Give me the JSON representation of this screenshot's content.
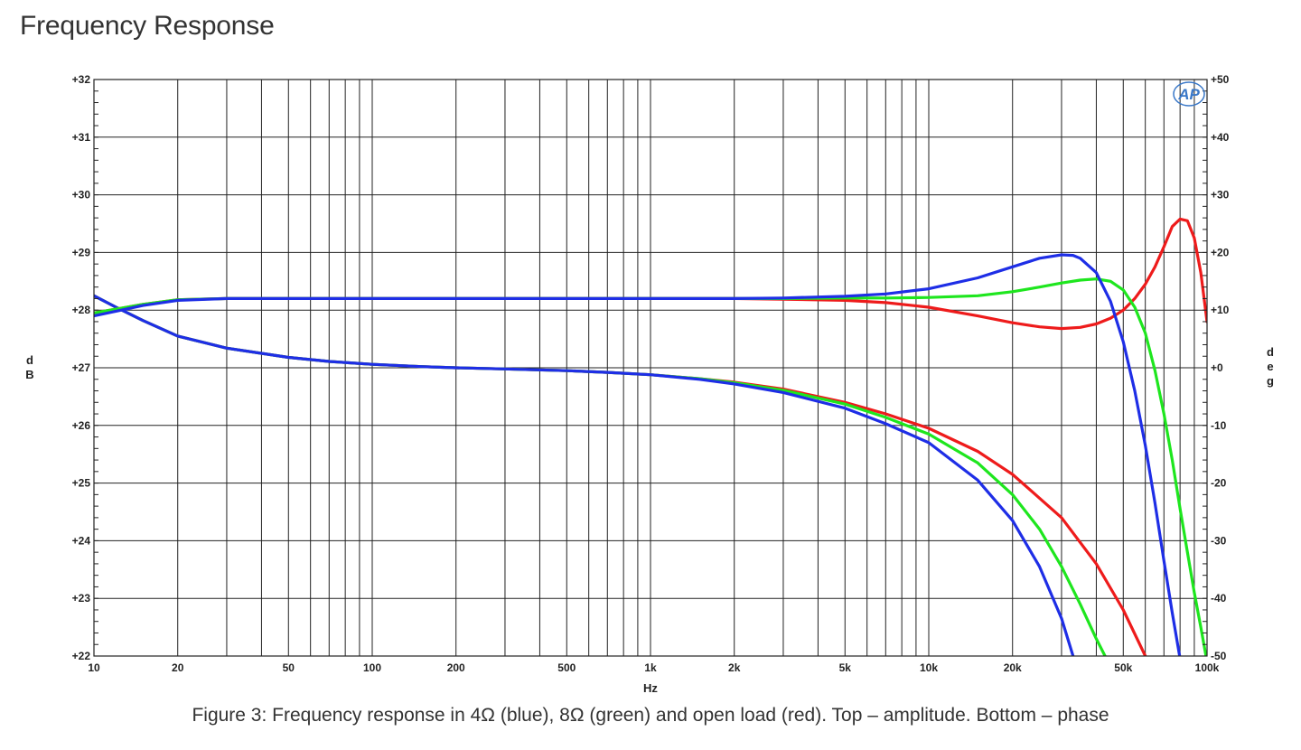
{
  "page": {
    "title": "Frequency Response",
    "caption": "Figure 3: Frequency response in 4Ω (blue), 8Ω (green) and open load (red). Top – amplitude. Bottom – phase",
    "logo_text": "AP"
  },
  "chart_data": {
    "type": "line",
    "title": "Frequency Response",
    "xlabel": "Hz",
    "ylabel": "dB",
    "y2label": "deg",
    "xscale": "log",
    "xlim": [
      10,
      100000
    ],
    "ylim": [
      22,
      32
    ],
    "y2lim": [
      -50,
      50
    ],
    "grid": true,
    "x_ticks": [
      {
        "value": 10,
        "label": "10"
      },
      {
        "value": 20,
        "label": "20"
      },
      {
        "value": 50,
        "label": "50"
      },
      {
        "value": 100,
        "label": "100"
      },
      {
        "value": 200,
        "label": "200"
      },
      {
        "value": 500,
        "label": "500"
      },
      {
        "value": 1000,
        "label": "1k"
      },
      {
        "value": 2000,
        "label": "2k"
      },
      {
        "value": 5000,
        "label": "5k"
      },
      {
        "value": 10000,
        "label": "10k"
      },
      {
        "value": 20000,
        "label": "20k"
      },
      {
        "value": 50000,
        "label": "50k"
      },
      {
        "value": 100000,
        "label": "100k"
      }
    ],
    "y_ticks": [
      "+22",
      "+23",
      "+24",
      "+25",
      "+26",
      "+27",
      "+28",
      "+29",
      "+30",
      "+31",
      "+32"
    ],
    "y2_ticks": [
      "-50",
      "-40",
      "-30",
      "-20",
      "-10",
      "+0",
      "+10",
      "+20",
      "+30",
      "+40",
      "+50"
    ],
    "colors": {
      "blue": "#1e2ee6",
      "green": "#1ee61e",
      "red": "#ee1b1b"
    },
    "series": [
      {
        "load": "open",
        "quantity": "amplitude",
        "axis": "left",
        "color": "#ee1b1b",
        "x": [
          10,
          15,
          20,
          30,
          50,
          100,
          200,
          500,
          1000,
          2000,
          3000,
          5000,
          7000,
          10000,
          15000,
          20000,
          25000,
          30000,
          35000,
          40000,
          45000,
          50000,
          55000,
          60000,
          65000,
          70000,
          75000,
          80000,
          85000,
          90000,
          95000,
          100000
        ],
        "y": [
          27.95,
          28.1,
          28.18,
          28.2,
          28.2,
          28.2,
          28.2,
          28.2,
          28.2,
          28.2,
          28.19,
          28.17,
          28.13,
          28.05,
          27.9,
          27.78,
          27.71,
          27.68,
          27.7,
          27.76,
          27.86,
          28.0,
          28.2,
          28.45,
          28.75,
          29.1,
          29.45,
          29.58,
          29.55,
          29.25,
          28.65,
          27.8
        ]
      },
      {
        "load": "8 ohm",
        "quantity": "amplitude",
        "axis": "left",
        "color": "#1ee61e",
        "x": [
          10,
          15,
          20,
          30,
          50,
          100,
          200,
          500,
          1000,
          2000,
          3000,
          5000,
          7000,
          10000,
          15000,
          20000,
          25000,
          30000,
          35000,
          40000,
          45000,
          50000,
          55000,
          60000,
          65000,
          70000,
          75000,
          80000,
          85000,
          90000,
          95000,
          100000
        ],
        "y": [
          27.95,
          28.1,
          28.18,
          28.2,
          28.2,
          28.2,
          28.2,
          28.2,
          28.2,
          28.2,
          28.2,
          28.21,
          28.21,
          28.22,
          28.25,
          28.32,
          28.4,
          28.47,
          28.52,
          28.54,
          28.5,
          28.35,
          28.05,
          27.6,
          26.95,
          26.2,
          25.4,
          24.55,
          23.8,
          23.1,
          22.5,
          21.9
        ]
      },
      {
        "load": "4 ohm",
        "quantity": "amplitude",
        "axis": "left",
        "color": "#1e2ee6",
        "x": [
          10,
          15,
          20,
          30,
          50,
          100,
          200,
          500,
          1000,
          2000,
          3000,
          5000,
          7000,
          10000,
          15000,
          20000,
          25000,
          30000,
          33000,
          35000,
          40000,
          45000,
          50000,
          55000,
          60000,
          65000,
          70000,
          75000,
          80000
        ],
        "y": [
          27.9,
          28.08,
          28.17,
          28.2,
          28.2,
          28.2,
          28.2,
          28.2,
          28.2,
          28.2,
          28.21,
          28.24,
          28.28,
          28.37,
          28.56,
          28.75,
          28.9,
          28.96,
          28.95,
          28.9,
          28.65,
          28.15,
          27.45,
          26.6,
          25.65,
          24.65,
          23.65,
          22.75,
          21.95
        ]
      },
      {
        "load": "open",
        "quantity": "phase",
        "axis": "right",
        "color": "#ee1b1b",
        "x": [
          10,
          12,
          15,
          20,
          30,
          50,
          70,
          100,
          150,
          200,
          300,
          500,
          700,
          1000,
          1500,
          2000,
          3000,
          5000,
          7000,
          10000,
          15000,
          20000,
          30000,
          40000,
          50000,
          60000
        ],
        "y": [
          12.5,
          10.5,
          8.2,
          5.5,
          3.4,
          1.8,
          1.1,
          0.6,
          0.2,
          0.0,
          -0.2,
          -0.5,
          -0.8,
          -1.2,
          -1.9,
          -2.5,
          -3.7,
          -6.0,
          -8.0,
          -10.5,
          -14.5,
          -18.5,
          -26.0,
          -34.0,
          -42.0,
          -50.0
        ]
      },
      {
        "load": "8 ohm",
        "quantity": "phase",
        "axis": "right",
        "color": "#1ee61e",
        "x": [
          10,
          12,
          15,
          20,
          30,
          50,
          70,
          100,
          150,
          200,
          300,
          500,
          700,
          1000,
          1500,
          2000,
          3000,
          5000,
          7000,
          10000,
          15000,
          20000,
          25000,
          30000,
          35000,
          40000,
          43000
        ],
        "y": [
          12.5,
          10.5,
          8.2,
          5.5,
          3.4,
          1.8,
          1.1,
          0.6,
          0.2,
          0.0,
          -0.2,
          -0.5,
          -0.8,
          -1.2,
          -1.9,
          -2.6,
          -3.9,
          -6.3,
          -8.6,
          -11.5,
          -16.5,
          -22.0,
          -28.0,
          -34.5,
          -41.0,
          -47.0,
          -50.0
        ]
      },
      {
        "load": "4 ohm",
        "quantity": "phase",
        "axis": "right",
        "color": "#1e2ee6",
        "x": [
          10,
          12,
          15,
          20,
          30,
          50,
          70,
          100,
          150,
          200,
          300,
          500,
          700,
          1000,
          1500,
          2000,
          3000,
          5000,
          7000,
          10000,
          15000,
          20000,
          25000,
          30000,
          33000
        ],
        "y": [
          12.5,
          10.5,
          8.2,
          5.5,
          3.4,
          1.8,
          1.1,
          0.6,
          0.2,
          0.0,
          -0.2,
          -0.5,
          -0.8,
          -1.2,
          -2.0,
          -2.8,
          -4.3,
          -7.0,
          -9.7,
          -13.0,
          -19.5,
          -26.5,
          -34.5,
          -43.5,
          -50.0
        ]
      }
    ]
  }
}
